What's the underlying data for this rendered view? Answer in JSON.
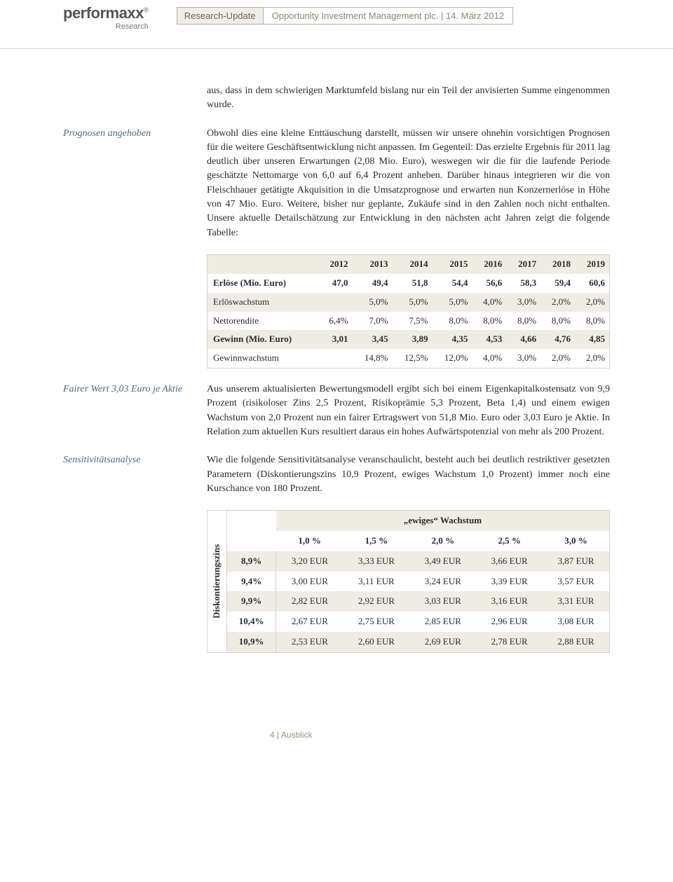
{
  "logo": {
    "main": "performaxx",
    "sup": "®",
    "sub": "Research"
  },
  "meta": {
    "left": "Research-Update",
    "right": "Opportunity Investment Management plc.  |  14. März 2012"
  },
  "sidenotes": {
    "s1": "Prognosen angehoben",
    "s2": "Fairer Wert 3,03 Euro je Aktie",
    "s3": "Sensitivitätsanalyse"
  },
  "paragraphs": {
    "p0": "aus, dass in dem schwierigen Marktumfeld bislang nur ein Teil der anvisierten Summe eingenommen wurde.",
    "p1": "Obwohl dies eine kleine Enttäuschung darstellt, müssen wir unsere ohnehin vorsichtigen Prognosen für die weitere Geschäftsentwicklung nicht anpassen. Im Gegenteil: Das erzielte Ergebnis für 2011 lag deutlich über unseren Erwartungen (2,08 Mio. Euro), weswegen wir die für die laufende Periode geschätzte Nettomarge von 6,0 auf 6,4 Prozent anheben. Darüber hinaus integrieren wir die von Fleischhauer getätigte Akquisition in die Umsatzprognose und erwarten nun Konzernerlöse in Höhe von 47 Mio. Euro. Weitere, bisher nur geplante, Zukäufe sind in den Zahlen noch nicht enthalten. Unsere aktuelle Detailschätzung zur Entwicklung in den nächsten acht Jahren zeigt die folgende Tabelle:",
    "p2": "Aus unserem aktualisierten Bewertungsmodell ergibt sich bei einem Eigenkapitalkostensatz von 9,9 Prozent (risikoloser Zins 2,5 Prozent, Risikoprämie 5,3 Prozent, Beta 1,4) und einem ewigen Wachstum von 2,0 Prozent nun ein fairer Ertragswert von 51,8 Mio. Euro oder 3,03 Euro je Aktie. In Relation zum aktuellen Kurs resultiert daraus ein hohes Aufwärtspotenzial von mehr als 200 Prozent.",
    "p3": "Wie die folgende Sensitivitätsanalyse veranschaulicht, besteht auch bei deutlich restriktiver gesetzten Parametern (Diskontierungszins 10,9 Prozent, ewiges Wachstum 1,0 Prozent) immer noch eine Kurschance von 180 Prozent."
  },
  "table1": {
    "years": [
      "2012",
      "2013",
      "2014",
      "2015",
      "2016",
      "2017",
      "2018",
      "2019"
    ],
    "rows": [
      {
        "label": "Erlöse (Mio. Euro)",
        "vals": [
          "47,0",
          "49,4",
          "51,8",
          "54,4",
          "56,6",
          "58,3",
          "59,4",
          "60,6"
        ],
        "bold": true
      },
      {
        "label": "Erlöswachstum",
        "vals": [
          "",
          "5,0%",
          "5,0%",
          "5,0%",
          "4,0%",
          "3,0%",
          "2,0%",
          "2,0%"
        ],
        "bold": false
      },
      {
        "label": "Nettorendite",
        "vals": [
          "6,4%",
          "7,0%",
          "7,5%",
          "8,0%",
          "8,0%",
          "8,0%",
          "8,0%",
          "8,0%"
        ],
        "bold": false
      },
      {
        "label": "Gewinn (Mio. Euro)",
        "vals": [
          "3,01",
          "3,45",
          "3,89",
          "4,35",
          "4,53",
          "4,66",
          "4,76",
          "4,85"
        ],
        "bold": true
      },
      {
        "label": "Gewinnwachstum",
        "vals": [
          "",
          "14,8%",
          "12,5%",
          "12,0%",
          "4,0%",
          "3,0%",
          "2,0%",
          "2,0%"
        ],
        "bold": false
      }
    ]
  },
  "sens": {
    "title": "„ewiges“ Wachstum",
    "vlabel": "Diskontierungszins",
    "cols": [
      "1,0 %",
      "1,5 %",
      "2,0 %",
      "2,5 %",
      "3,0 %"
    ],
    "rows": [
      {
        "h": "8,9%",
        "v": [
          "3,20 EUR",
          "3,33 EUR",
          "3,49 EUR",
          "3,66 EUR",
          "3,87 EUR"
        ]
      },
      {
        "h": "9,4%",
        "v": [
          "3,00 EUR",
          "3,11 EUR",
          "3,24 EUR",
          "3,39 EUR",
          "3,57 EUR"
        ]
      },
      {
        "h": "9,9%",
        "v": [
          "2,82 EUR",
          "2,92 EUR",
          "3,03 EUR",
          "3,16 EUR",
          "3,31 EUR"
        ]
      },
      {
        "h": "10,4%",
        "v": [
          "2,67 EUR",
          "2,75 EUR",
          "2,85 EUR",
          "2,96 EUR",
          "3,08 EUR"
        ]
      },
      {
        "h": "10,9%",
        "v": [
          "2,53 EUR",
          "2,60 EUR",
          "2,69 EUR",
          "2,78 EUR",
          "2,88 EUR"
        ]
      }
    ]
  },
  "footer": "4  |  Ausblick"
}
